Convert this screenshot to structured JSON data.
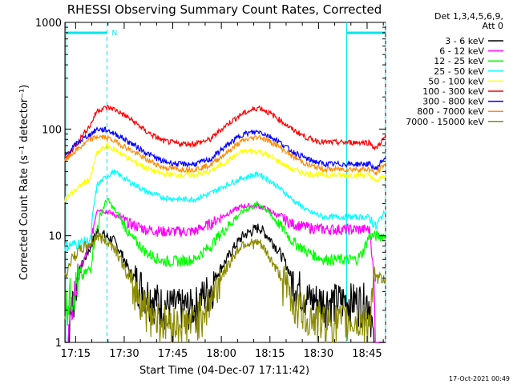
{
  "chart_data": {
    "type": "line",
    "title": "RHESSI Observing Summary Count Rates, Corrected",
    "xlabel": "Start Time (04-Dec-07 17:11:42)",
    "ylabel": "Corrected Count Rate (s⁻¹ detector⁻¹)",
    "y_scale": "log",
    "ylim": [
      1,
      1000
    ],
    "y_ticks": [
      1,
      10,
      100,
      1000
    ],
    "y_tick_labels": [
      "1",
      "10",
      "100",
      "1000"
    ],
    "xlim_minutes": [
      0,
      99
    ],
    "x_ticks": [
      "17:15",
      "17:30",
      "17:45",
      "18:00",
      "18:15",
      "18:30",
      "18:45"
    ],
    "legend_header": [
      "Det 1,3,4,5,6,9,",
      "Att 0"
    ],
    "legend_position": "right",
    "footer_date": "17-Oct-2021 00:49",
    "flag_label": "N",
    "flag_color": "#00e5ee",
    "flag_intervals": [
      [
        0,
        13
      ],
      [
        87,
        99
      ]
    ],
    "dashed_markers": [
      13,
      99
    ],
    "solid_markers": [
      87
    ],
    "series": [
      {
        "name": "3 - 6 keV",
        "color": "#000000",
        "x": [
          0,
          8,
          10,
          15,
          20,
          25,
          30,
          35,
          40,
          45,
          50,
          55,
          60,
          65,
          70,
          75,
          80,
          85,
          90,
          94,
          96,
          99
        ],
        "y": [
          0,
          8,
          11,
          9,
          4.5,
          3,
          2.3,
          2.2,
          2.2,
          3.3,
          6,
          10,
          12,
          8,
          4,
          2.6,
          2.5,
          2.5,
          2.5,
          2.5,
          0,
          0
        ]
      },
      {
        "name": "6 - 12 keV",
        "color": "#ff00ff",
        "x": [
          0,
          8,
          10,
          15,
          20,
          25,
          30,
          35,
          40,
          45,
          50,
          55,
          60,
          65,
          70,
          75,
          80,
          85,
          90,
          94,
          96,
          99
        ],
        "y": [
          0,
          8,
          18,
          16,
          13,
          11.5,
          11,
          11,
          11,
          13,
          16,
          19,
          19,
          16,
          13,
          12,
          11.5,
          11.5,
          11.5,
          11.5,
          0,
          0
        ]
      },
      {
        "name": "12 - 25 keV",
        "color": "#00ff00",
        "x": [
          0,
          2,
          8,
          10,
          13,
          15,
          20,
          25,
          30,
          35,
          40,
          45,
          50,
          55,
          60,
          65,
          70,
          75,
          80,
          85,
          90,
          92,
          94,
          96,
          98,
          99
        ],
        "y": [
          2.2,
          3,
          5,
          12,
          22,
          18,
          10,
          7,
          5.8,
          5.8,
          6,
          8,
          12,
          17,
          20,
          14,
          9,
          7,
          6,
          6,
          6,
          7,
          10,
          10,
          10,
          10
        ]
      },
      {
        "name": "25 - 50 keV",
        "color": "#00ffff",
        "x": [
          0,
          8,
          10,
          15,
          20,
          25,
          30,
          35,
          40,
          45,
          50,
          55,
          60,
          65,
          70,
          75,
          80,
          85,
          90,
          94,
          96,
          99
        ],
        "y": [
          8,
          9,
          30,
          40,
          32,
          26,
          23,
          22,
          22,
          25,
          30,
          35,
          38,
          30,
          22,
          17,
          15,
          15,
          15,
          15,
          12,
          17
        ]
      },
      {
        "name": "50 - 100 keV",
        "color": "#ffff00",
        "x": [
          0,
          4,
          8,
          10,
          13,
          15,
          20,
          25,
          30,
          35,
          40,
          45,
          50,
          55,
          60,
          65,
          70,
          75,
          80,
          85,
          90,
          94,
          96,
          99
        ],
        "y": [
          22,
          28,
          35,
          60,
          70,
          65,
          52,
          43,
          38,
          37,
          37,
          40,
          50,
          62,
          62,
          52,
          42,
          38,
          37,
          37,
          37,
          37,
          32,
          37
        ]
      },
      {
        "name": "100 - 300 keV",
        "color": "#ff0000",
        "x": [
          0,
          4,
          8,
          10,
          13,
          15,
          20,
          25,
          30,
          35,
          40,
          45,
          50,
          55,
          60,
          65,
          70,
          75,
          80,
          85,
          90,
          94,
          96,
          99
        ],
        "y": [
          50,
          75,
          110,
          150,
          160,
          155,
          125,
          95,
          78,
          73,
          73,
          80,
          110,
          140,
          160,
          130,
          100,
          82,
          75,
          75,
          75,
          75,
          65,
          85
        ]
      },
      {
        "name": "300 - 800 keV",
        "color": "#0000ff",
        "x": [
          0,
          4,
          8,
          10,
          13,
          15,
          20,
          25,
          30,
          35,
          40,
          45,
          50,
          55,
          60,
          65,
          70,
          75,
          80,
          85,
          90,
          94,
          96,
          99
        ],
        "y": [
          55,
          75,
          90,
          100,
          98,
          92,
          75,
          60,
          50,
          47,
          47,
          52,
          70,
          90,
          95,
          80,
          62,
          52,
          47,
          47,
          47,
          47,
          42,
          55
        ]
      },
      {
        "name": "800 - 7000 keV",
        "color": "#ff8c00",
        "x": [
          0,
          4,
          8,
          10,
          13,
          15,
          20,
          25,
          30,
          35,
          40,
          45,
          50,
          55,
          60,
          65,
          70,
          75,
          80,
          85,
          90,
          94,
          96,
          99
        ],
        "y": [
          50,
          65,
          80,
          85,
          83,
          78,
          64,
          52,
          44,
          42,
          42,
          46,
          60,
          78,
          85,
          72,
          56,
          46,
          42,
          42,
          42,
          42,
          38,
          48
        ]
      },
      {
        "name": "7000 - 15000 keV",
        "color": "#8b8b00",
        "x": [
          0,
          2,
          5,
          8,
          10,
          15,
          20,
          25,
          30,
          35,
          40,
          45,
          50,
          55,
          60,
          65,
          70,
          75,
          80,
          85,
          90,
          94,
          96,
          99
        ],
        "y": [
          4,
          6,
          7.5,
          8.5,
          10,
          8,
          3.5,
          2.2,
          1.6,
          1.5,
          1.6,
          2.5,
          5,
          8.5,
          8.5,
          5,
          2.5,
          1.8,
          1.6,
          1.6,
          1.6,
          1.6,
          4,
          4
        ]
      }
    ]
  }
}
